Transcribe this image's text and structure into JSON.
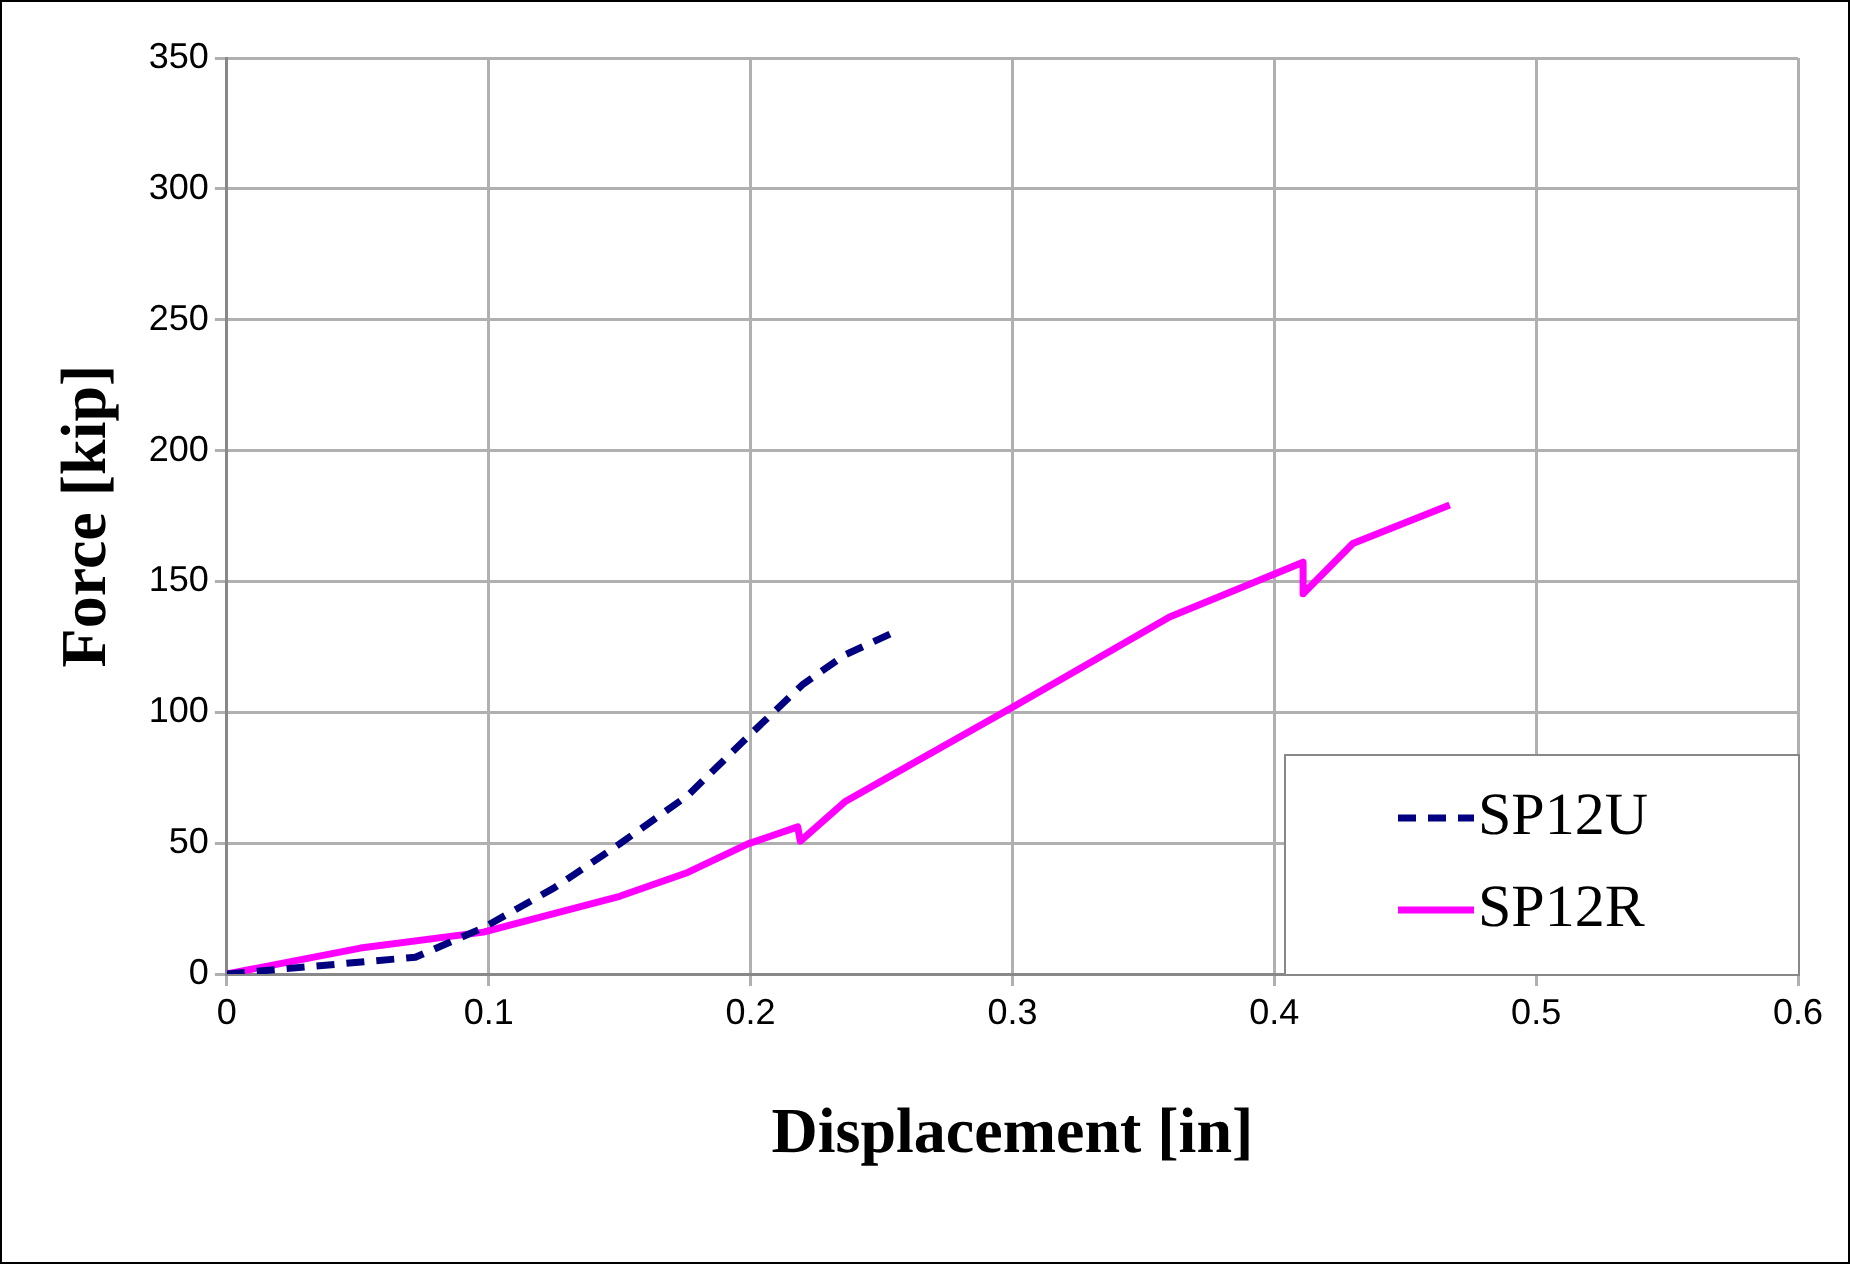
{
  "chart_data": {
    "type": "line",
    "xlabel": "Displacement [in]",
    "ylabel": "Force [kip]",
    "xlim": [
      0,
      0.6
    ],
    "xticks": [
      0,
      0.1,
      0.2,
      0.3,
      0.4,
      0.5,
      0.6
    ],
    "ylim": [
      0,
      350
    ],
    "yticks": [
      0,
      50,
      100,
      150,
      200,
      250,
      300,
      350
    ],
    "grid": true,
    "legend": "bottom right",
    "marker": "none",
    "series": [
      {
        "name": "SP12U",
        "color": "#000080",
        "line_style": "dashed",
        "x": [
          0,
          0.02,
          0.072,
          0.098,
          0.125,
          0.15,
          0.176,
          0.199,
          0.22,
          0.236,
          0.257
        ],
        "values": [
          0,
          1.8,
          6.4,
          17.7,
          32.9,
          49.7,
          68.2,
          90.7,
          110.7,
          121.9,
          131.6
        ]
      },
      {
        "name": "SP12R",
        "color": "#ff00ff",
        "line_style": "solid",
        "x": [
          0,
          0.051,
          0.098,
          0.15,
          0.176,
          0.199,
          0.218,
          0.219,
          0.236,
          0.254,
          0.3,
          0.36,
          0.411,
          0.411,
          0.43,
          0.467
        ],
        "values": [
          0,
          9.9,
          16,
          29.7,
          38.8,
          49.7,
          56.2,
          50.8,
          65.8,
          76,
          101.9,
          136.4,
          157.3,
          145.3,
          164.5,
          179.2
        ]
      }
    ]
  }
}
